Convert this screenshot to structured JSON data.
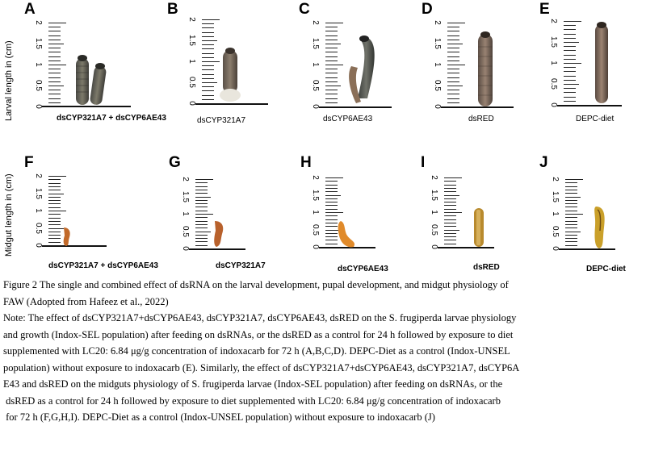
{
  "figure": {
    "y_axis_top": "Larval length in (cm)",
    "y_axis_bottom": "Midgut length in (cm)",
    "ruler_numbers": [
      "2",
      "1.5",
      "1",
      "0.5",
      "0"
    ],
    "top_panels": [
      {
        "letter": "A",
        "label": "dsCYP321A7 + dsCYP6AE43"
      },
      {
        "letter": "B",
        "label": "dsCYP321A7"
      },
      {
        "letter": "C",
        "label": "dsCYP6AE43"
      },
      {
        "letter": "D",
        "label": "dsRED"
      },
      {
        "letter": "E",
        "label": "DEPC-diet"
      }
    ],
    "bottom_panels": [
      {
        "letter": "F",
        "label": "dsCYP321A7 + dsCYP6AE43"
      },
      {
        "letter": "G",
        "label": "dsCYP321A7"
      },
      {
        "letter": "H",
        "label": "dsCYP6AE43"
      },
      {
        "letter": "I",
        "label": "dsRED"
      },
      {
        "letter": "J",
        "label": "DEPC-diet"
      }
    ]
  },
  "caption": {
    "title_line1": "Figure 2 The single and combined effect of dsRNA on the larval development, pupal development, and midgut physiology of",
    "title_line2": "FAW (Adopted from Hafeez et al., 2022)",
    "note_lines": [
      "Note: The effect of dsCYP321A7+dsCYP6AE43, dsCYP321A7, dsCYP6AE43, dsRED on the S. frugiperda larvae physiology",
      "and growth (Indox-SEL population) after feeding on dsRNAs, or the dsRED as a control for 24 h followed by exposure to diet",
      "supplemented with LC20: 6.84 μg/g concentration of indoxacarb for 72 h (A,B,C,D). DEPC-Diet as a control (Indox-UNSEL",
      "population) without exposure to indoxacarb (E). Similarly, the effect of dsCYP321A7+dsCYP6AE43, dsCYP321A7, dsCYP6A",
      "E43 and dsRED on the midguts physiology of S. frugiperda larvae (Indox-SEL population) after feeding on dsRNAs, or the",
      " dsRED as a control for 24 h followed by exposure to diet supplemented with LC20: 6.84 μg/g concentration of indoxacarb",
      " for 72 h (F,G,H,I). DEPC-Diet as a control (Indox-UNSEL population) without exposure to indoxacarb (J)"
    ]
  }
}
